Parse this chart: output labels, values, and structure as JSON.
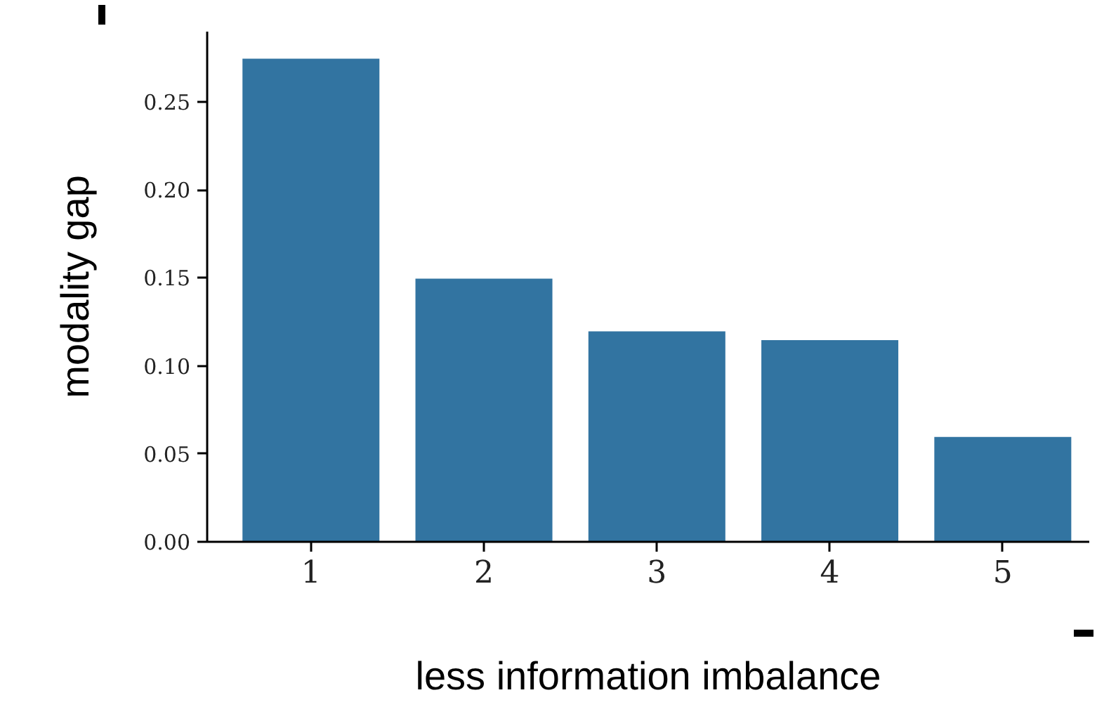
{
  "chart_data": {
    "type": "bar",
    "xlabel": "less information imbalance",
    "ylabel": "modality gap",
    "categories": [
      "1",
      "2",
      "3",
      "4",
      "5"
    ],
    "values": [
      0.275,
      0.15,
      0.12,
      0.115,
      0.06
    ],
    "color": "#3274a1",
    "ylim": [
      0,
      0.29
    ],
    "yticks": [
      {
        "value": 0,
        "label": "0.00"
      },
      {
        "value": 0.05,
        "label": "0.05"
      },
      {
        "value": 0.1,
        "label": "0.10"
      },
      {
        "value": 0.15,
        "label": "0.15"
      },
      {
        "value": 0.2,
        "label": "0.20"
      },
      {
        "value": 0.25,
        "label": "0.25"
      }
    ],
    "grid": false
  }
}
